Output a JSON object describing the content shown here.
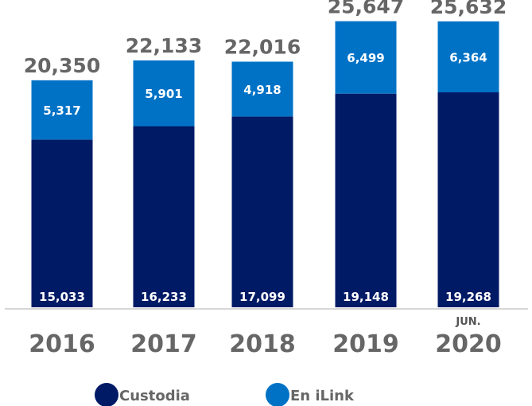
{
  "chart_data": {
    "type": "bar",
    "stacked": true,
    "categories": [
      "2016",
      "2017",
      "2018",
      "2019",
      "2020"
    ],
    "category_notes": [
      "",
      "",
      "",
      "",
      "JUN."
    ],
    "series": [
      {
        "name": "Custodia",
        "values": [
          15033,
          16233,
          17099,
          19148,
          19268
        ],
        "color": "#001a66"
      },
      {
        "name": "En iLink",
        "values": [
          5317,
          5901,
          4918,
          6499,
          6364
        ],
        "color": "#0072c6"
      }
    ],
    "totals": [
      20350,
      22133,
      22016,
      25647,
      25632
    ],
    "legend_position": "bottom",
    "grid": false,
    "ylim": [
      0,
      27000
    ]
  },
  "formatted": {
    "custodia": [
      "15,033",
      "16,233",
      "17,099",
      "19,148",
      "19,268"
    ],
    "ilink": [
      "5,317",
      "5,901",
      "4,918",
      "6,499",
      "6,364"
    ],
    "totals": [
      "20,350",
      "22,133",
      "22,016",
      "25,647",
      "25,632"
    ]
  }
}
